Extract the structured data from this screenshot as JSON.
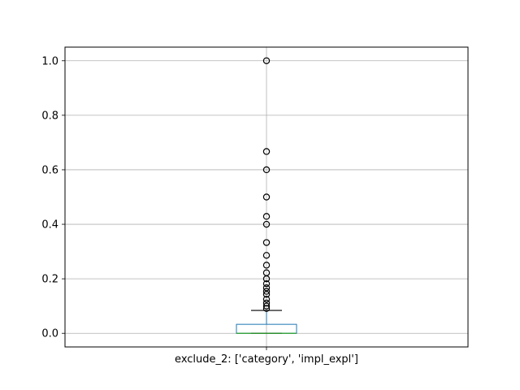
{
  "chart_data": {
    "type": "box",
    "categories": [
      "exclude_2: ['category', 'impl_expl']"
    ],
    "ylim": [
      -0.05,
      1.05
    ],
    "yticks": [
      0.0,
      0.2,
      0.4,
      0.6,
      0.8,
      1.0
    ],
    "ytick_labels": [
      "0.0",
      "0.2",
      "0.4",
      "0.6",
      "0.8",
      "1.0"
    ],
    "grid": true,
    "box": {
      "whisker_low": 0.0,
      "q1": 0.0,
      "median": 0.0,
      "q3": 0.033,
      "whisker_high": 0.084
    },
    "outliers": [
      0.091,
      0.1,
      0.111,
      0.125,
      0.143,
      0.154,
      0.167,
      0.182,
      0.2,
      0.222,
      0.25,
      0.286,
      0.333,
      0.4,
      0.429,
      0.5,
      0.6,
      0.667,
      1.0
    ],
    "colors": {
      "box": "#1f77b4",
      "median": "#2ca02c",
      "whisker": "#1f77b4",
      "cap": "#000000",
      "outlier": "#000000",
      "grid": "#b0b0b0"
    }
  }
}
